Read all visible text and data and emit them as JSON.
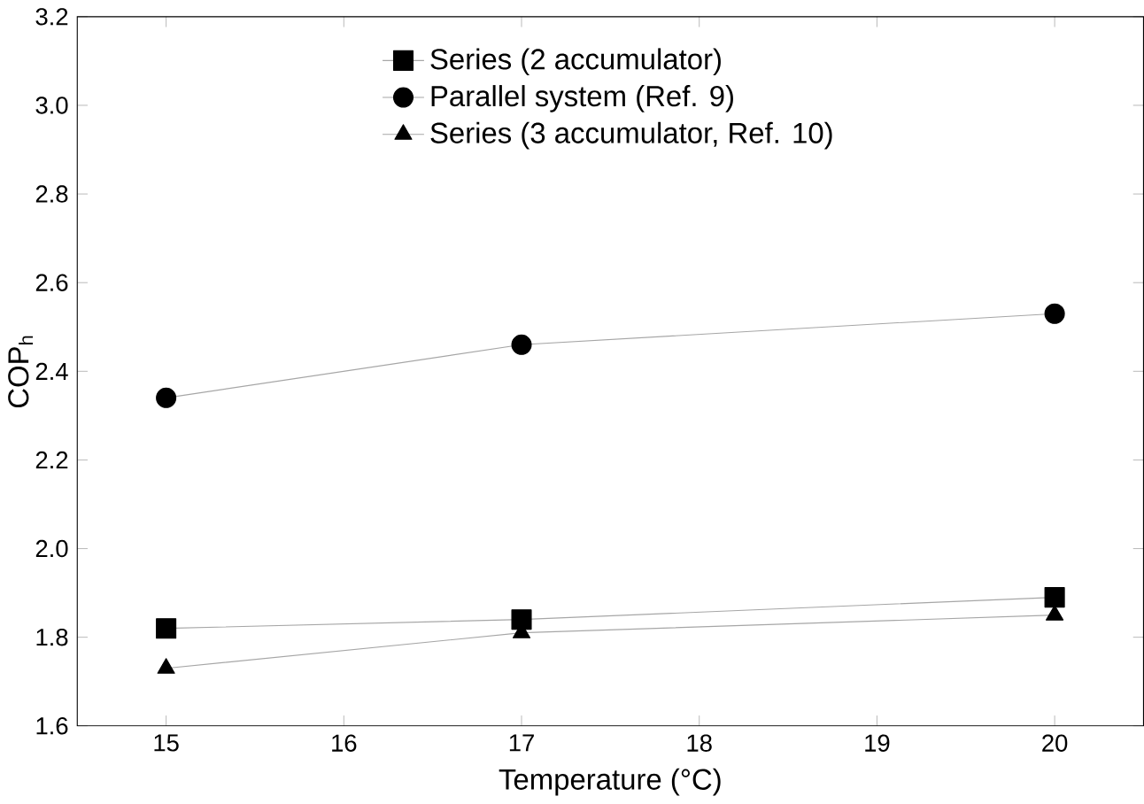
{
  "chart_data": {
    "type": "line",
    "xlabel": "Temperature (°C)",
    "ylabel": "COP$_{h}$",
    "x": [
      15,
      17,
      20
    ],
    "series": [
      {
        "name": "Series (2 accumulator)",
        "color": "#000000",
        "marker": "square",
        "values": [
          1.82,
          1.84,
          1.89
        ]
      },
      {
        "name": "Parallel system (Ref. 9)",
        "color": "#000000",
        "marker": "circle",
        "values": [
          2.34,
          2.46,
          2.53
        ]
      },
      {
        "name": "Series (3 accumulator, Ref. 10)",
        "color": "#000000",
        "marker": "triangle",
        "values": [
          1.73,
          1.81,
          1.85
        ]
      }
    ],
    "xlim": [
      14.5,
      20.5
    ],
    "xticks": [
      15,
      16,
      17,
      18,
      19,
      20
    ],
    "ylim": [
      1.6,
      3.2
    ],
    "yticks": [
      {
        "value": 1.6,
        "label": "1.6"
      },
      {
        "value": 1.8,
        "label": "1.8"
      },
      {
        "value": 2.0,
        "label": "2.0"
      },
      {
        "value": 2.2,
        "label": "2.2"
      },
      {
        "value": 2.4,
        "label": "2.4"
      },
      {
        "value": 2.6,
        "label": "2.6"
      },
      {
        "value": 2.8,
        "label": "2.8"
      },
      {
        "value": 3.0,
        "label": "3.0"
      },
      {
        "value": 3.2,
        "label": "3.2"
      }
    ],
    "grid": false,
    "legend": "top",
    "line_style": "solid"
  }
}
